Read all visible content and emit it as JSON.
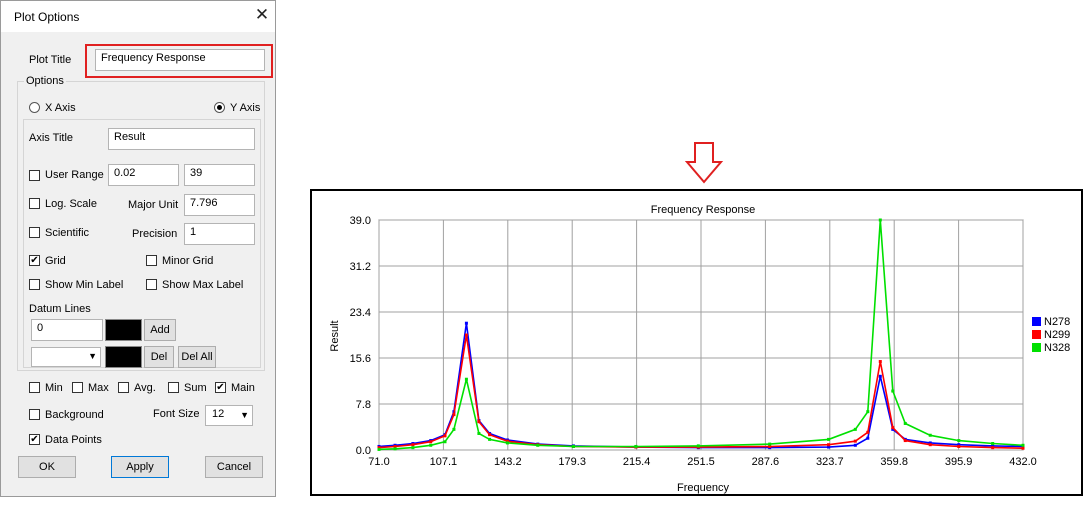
{
  "dialog": {
    "title": "Plot Options",
    "plot_title_label": "Plot Title",
    "plot_title_value": "Frequency Response",
    "options_legend": "Options",
    "x_axis_label": "X Axis",
    "y_axis_label": "Y Axis",
    "y_axis_selected": true,
    "axis_title_label": "Axis Title",
    "axis_title_value": "Result",
    "user_range_label": "User Range",
    "user_range_min": "0.02",
    "user_range_max": "39",
    "log_scale_label": "Log. Scale",
    "major_unit_label": "Major Unit",
    "major_unit_value": "7.796",
    "scientific_label": "Scientific",
    "precision_label": "Precision",
    "precision_value": "1",
    "grid_label": "Grid",
    "grid_checked": true,
    "minor_grid_label": "Minor Grid",
    "show_min_label": "Show Min Label",
    "show_max_label": "Show Max Label",
    "datum_lines_label": "Datum Lines",
    "datum_value": "0",
    "add_label": "Add",
    "del_label": "Del",
    "del_all_label": "Del All",
    "min_label": "Min",
    "max_label": "Max",
    "avg_label": "Avg.",
    "sum_label": "Sum",
    "main_label": "Main",
    "main_checked": true,
    "background_label": "Background",
    "font_size_label": "Font Size",
    "font_size_value": "12",
    "data_points_label": "Data Points",
    "data_points_checked": true,
    "ok_label": "OK",
    "apply_label": "Apply",
    "cancel_label": "Cancel",
    "highlight_color": "#e02020"
  },
  "arrow_color": "#e02020",
  "chart_data": {
    "type": "line",
    "title": "Frequency Response",
    "xlabel": "Frequency",
    "ylabel": "Result",
    "xlim": [
      71.0,
      432.0
    ],
    "ylim": [
      0.0,
      39.0
    ],
    "x_ticks": [
      "71.0",
      "107.1",
      "143.2",
      "179.3",
      "215.4",
      "251.5",
      "287.6",
      "323.7",
      "359.8",
      "395.9",
      "432.0"
    ],
    "y_ticks": [
      "0.0",
      "7.8",
      "15.6",
      "23.4",
      "31.2",
      "39.0"
    ],
    "grid": true,
    "legend_position": "right",
    "series": [
      {
        "name": "N278",
        "color": "#0000ff",
        "points": [
          [
            71,
            0.6
          ],
          [
            80,
            0.8
          ],
          [
            90,
            1.1
          ],
          [
            100,
            1.6
          ],
          [
            108,
            2.6
          ],
          [
            113,
            6.5
          ],
          [
            120,
            21.5
          ],
          [
            127,
            5.0
          ],
          [
            133,
            2.8
          ],
          [
            143,
            1.7
          ],
          [
            160,
            1.0
          ],
          [
            180,
            0.7
          ],
          [
            215,
            0.5
          ],
          [
            250,
            0.4
          ],
          [
            290,
            0.4
          ],
          [
            323,
            0.5
          ],
          [
            338,
            0.8
          ],
          [
            345,
            2.0
          ],
          [
            352,
            12.5
          ],
          [
            359,
            3.5
          ],
          [
            366,
            1.8
          ],
          [
            380,
            1.2
          ],
          [
            396,
            0.9
          ],
          [
            415,
            0.7
          ],
          [
            432,
            0.6
          ]
        ]
      },
      {
        "name": "N299",
        "color": "#ff0000",
        "points": [
          [
            71,
            0.4
          ],
          [
            80,
            0.6
          ],
          [
            90,
            0.9
          ],
          [
            100,
            1.4
          ],
          [
            108,
            2.4
          ],
          [
            113,
            6.0
          ],
          [
            120,
            19.5
          ],
          [
            127,
            4.8
          ],
          [
            133,
            2.6
          ],
          [
            143,
            1.5
          ],
          [
            160,
            0.9
          ],
          [
            180,
            0.6
          ],
          [
            215,
            0.5
          ],
          [
            250,
            0.5
          ],
          [
            290,
            0.6
          ],
          [
            323,
            0.9
          ],
          [
            338,
            1.5
          ],
          [
            345,
            3.0
          ],
          [
            352,
            15.0
          ],
          [
            359,
            3.8
          ],
          [
            366,
            1.6
          ],
          [
            380,
            0.9
          ],
          [
            396,
            0.6
          ],
          [
            415,
            0.4
          ],
          [
            432,
            0.3
          ]
        ]
      },
      {
        "name": "N328",
        "color": "#00e000",
        "points": [
          [
            71,
            0.1
          ],
          [
            80,
            0.2
          ],
          [
            90,
            0.4
          ],
          [
            100,
            0.8
          ],
          [
            108,
            1.4
          ],
          [
            113,
            3.5
          ],
          [
            120,
            12.0
          ],
          [
            127,
            2.8
          ],
          [
            133,
            1.8
          ],
          [
            143,
            1.2
          ],
          [
            160,
            0.8
          ],
          [
            180,
            0.6
          ],
          [
            215,
            0.6
          ],
          [
            250,
            0.7
          ],
          [
            290,
            1.0
          ],
          [
            323,
            1.8
          ],
          [
            338,
            3.5
          ],
          [
            345,
            6.5
          ],
          [
            352,
            39.0
          ],
          [
            359,
            10.0
          ],
          [
            366,
            4.5
          ],
          [
            380,
            2.5
          ],
          [
            396,
            1.6
          ],
          [
            415,
            1.1
          ],
          [
            432,
            0.8
          ]
        ]
      }
    ]
  }
}
